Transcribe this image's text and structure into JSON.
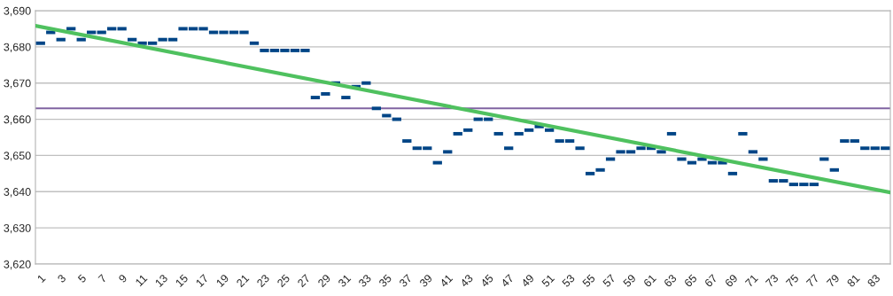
{
  "chart_data": {
    "type": "scatter",
    "series": [
      {
        "color": "#004586",
        "marker": "square",
        "x": [
          1,
          2,
          3,
          4,
          5,
          6,
          7,
          8,
          9,
          10,
          11,
          12,
          13,
          14,
          15,
          16,
          17,
          18,
          19,
          20,
          21,
          22,
          23,
          24,
          25,
          26,
          27,
          28,
          29,
          30,
          31,
          32,
          33,
          34,
          35,
          36,
          37,
          38,
          39,
          40,
          41,
          42,
          43,
          44,
          45,
          46,
          47,
          48,
          49,
          50,
          51,
          52,
          53,
          54,
          55,
          56,
          57,
          58,
          59,
          60,
          61,
          62,
          63,
          64,
          65,
          66,
          67,
          68,
          69,
          70,
          71,
          72,
          73,
          74,
          75,
          76,
          77,
          78,
          79,
          80,
          81,
          82,
          83,
          84
        ],
        "values": [
          3681,
          3684,
          3682,
          3685,
          3682,
          3684,
          3684,
          3685,
          3685,
          3682,
          3681,
          3681,
          3682,
          3682,
          3685,
          3685,
          3685,
          3684,
          3684,
          3684,
          3684,
          3681,
          3679,
          3679,
          3679,
          3679,
          3679,
          3666,
          3667,
          3670,
          3666,
          3669,
          3670,
          3663,
          3661,
          3660,
          3654,
          3652,
          3652,
          3648,
          3651,
          3656,
          3657,
          3660,
          3660,
          3656,
          3652,
          3656,
          3657,
          3658,
          3657,
          3654,
          3654,
          3652,
          3645,
          3646,
          3649,
          3651,
          3651,
          3652,
          3652,
          3651,
          3656,
          3649,
          3648,
          3649,
          3648,
          3648,
          3645,
          3656,
          3651,
          3649,
          3643,
          3643,
          3642,
          3642,
          3642,
          3649,
          3646,
          3654,
          3654,
          3652,
          3652,
          3652
        ]
      },
      {
        "type": "line",
        "color": "#4fc15f",
        "x": [
          0.5,
          84.5
        ],
        "values": [
          3685.8,
          3639.8
        ]
      }
    ],
    "ref_lines": [
      {
        "axis": "y",
        "value": 3663,
        "color": "#8064a2"
      }
    ],
    "xlim": [
      0.5,
      84.5
    ],
    "xticks": [
      1,
      3,
      5,
      7,
      9,
      11,
      13,
      15,
      17,
      19,
      21,
      23,
      25,
      27,
      29,
      31,
      33,
      35,
      37,
      39,
      41,
      43,
      45,
      47,
      49,
      51,
      53,
      55,
      57,
      59,
      61,
      63,
      65,
      67,
      69,
      71,
      73,
      75,
      77,
      79,
      81,
      83
    ],
    "ylim": [
      3620,
      3690
    ],
    "yticks": [
      {
        "value": 3620,
        "label": "3,620"
      },
      {
        "value": 3630,
        "label": "3,630"
      },
      {
        "value": 3640,
        "label": "3,640"
      },
      {
        "value": 3650,
        "label": "3,650"
      },
      {
        "value": 3660,
        "label": "3,660"
      },
      {
        "value": 3670,
        "label": "3,670"
      },
      {
        "value": 3680,
        "label": "3,680"
      },
      {
        "value": 3690,
        "label": "3,690"
      }
    ],
    "grid": "y",
    "legend": false
  }
}
